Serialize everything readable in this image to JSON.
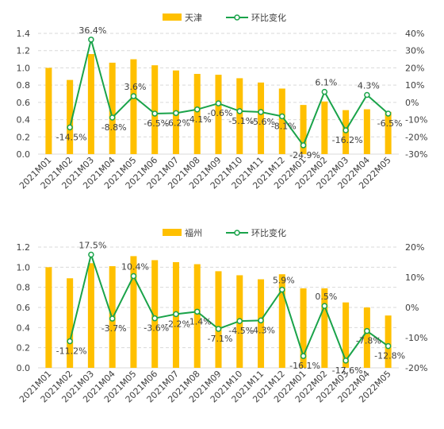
{
  "colors": {
    "bar": "#FFC000",
    "line": "#1AA34A",
    "grid": "#D9D9D9",
    "text": "#404040"
  },
  "chart_data": [
    {
      "type": "bar+line",
      "legend": [
        "天津",
        "环比变化"
      ],
      "categories": [
        "2021M01",
        "2021M02",
        "2021M03",
        "2021M04",
        "2021M05",
        "2021M06",
        "2021M07",
        "2021M08",
        "2021M09",
        "2021M10",
        "2021M11",
        "2021M12",
        "2022M01",
        "2022M02",
        "2022M03",
        "2022M04",
        "2022M05"
      ],
      "bars": [
        1.0,
        0.86,
        1.16,
        1.06,
        1.1,
        1.03,
        0.97,
        0.93,
        0.92,
        0.88,
        0.83,
        0.76,
        0.57,
        0.61,
        0.51,
        0.52,
        0.49
      ],
      "line": [
        null,
        -14.5,
        36.4,
        -8.8,
        3.6,
        -6.5,
        -6.2,
        -4.1,
        -0.6,
        -5.1,
        -5.6,
        -8.1,
        -24.9,
        6.1,
        -16.2,
        4.3,
        -6.5
      ],
      "line_labels": [
        "",
        "-14.5%",
        "36.4%",
        "-8.8%",
        "3.6%",
        "-6.5%",
        "-6.2%",
        "-4.1%",
        "-0.6%",
        "-5.1%",
        "-5.6%",
        "-8.1%",
        "-24.9%",
        "6.1%",
        "-16.2%",
        "4.3%",
        "-6.5%"
      ],
      "left_ticks": [
        "0.0",
        "0.2",
        "0.4",
        "0.6",
        "0.8",
        "1.0",
        "1.2",
        "1.4"
      ],
      "right_ticks": [
        "-30%",
        "-20%",
        "-10%",
        "0%",
        "10%",
        "20%",
        "30%",
        "40%"
      ],
      "ylim_left": [
        0,
        1.4
      ],
      "ylim_right": [
        -30,
        40
      ],
      "grid": true,
      "legend_position": "top"
    },
    {
      "type": "bar+line",
      "legend": [
        "福州",
        "环比变化"
      ],
      "categories": [
        "2021M01",
        "2021M02",
        "2021M03",
        "2021M04",
        "2021M05",
        "2021M06",
        "2021M07",
        "2021M08",
        "2021M09",
        "2021M10",
        "2021M11",
        "2021M12",
        "2022M01",
        "2022M02",
        "2022M03",
        "2022M04",
        "2022M05"
      ],
      "bars": [
        1.0,
        0.89,
        1.04,
        1.01,
        1.11,
        1.07,
        1.05,
        1.03,
        0.96,
        0.92,
        0.88,
        0.93,
        0.79,
        0.79,
        0.65,
        0.6,
        0.52
      ],
      "line": [
        null,
        -11.2,
        17.5,
        -3.7,
        10.4,
        -3.6,
        -2.2,
        -1.4,
        -7.1,
        -4.5,
        -4.3,
        5.9,
        -16.1,
        0.5,
        -17.6,
        -7.8,
        -12.8
      ],
      "line_labels": [
        "",
        "-11.2%",
        "17.5%",
        "-3.7%",
        "10.4%",
        "-3.6%",
        "-2.2%",
        "-1.4%",
        "-7.1%",
        "-4.5%",
        "-4.3%",
        "5.9%",
        "-16.1%",
        "0.5%",
        "-17.6%",
        "-7.8%",
        "-12.8%"
      ],
      "left_ticks": [
        "0.0",
        "0.2",
        "0.4",
        "0.6",
        "0.8",
        "1.0",
        "1.2"
      ],
      "right_ticks": [
        "-20%",
        "-10%",
        "0%",
        "10%",
        "20%"
      ],
      "ylim_left": [
        0,
        1.2
      ],
      "ylim_right": [
        -20,
        20
      ],
      "grid": true,
      "legend_position": "top"
    }
  ]
}
